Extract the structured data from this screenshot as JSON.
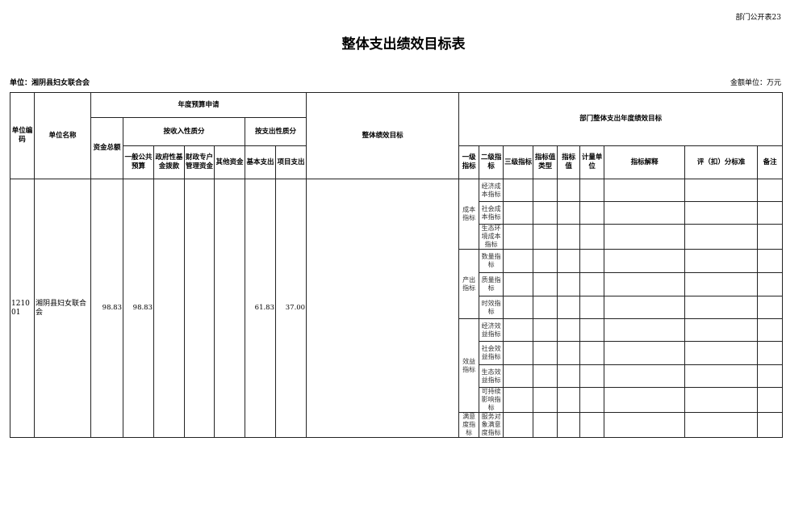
{
  "form_tag": "部门公开表23",
  "title": "整体支出绩效目标表",
  "unit_label": "单位：湘阴县妇女联合会",
  "money_unit": "金额单位：万元",
  "headers": {
    "unit_code": "单位编码",
    "unit_name": "单位名称",
    "annual_budget": "年度预算申请",
    "total_funds": "资金总额",
    "by_income": "按收入性质分",
    "by_expense": "按支出性质分",
    "general_budget": "一般公共预算",
    "gov_fund": "政府性基金拨款",
    "special_account": "财政专户管理资金",
    "other_funds": "其他资金",
    "basic_expense": "基本支出",
    "project_expense": "项目支出",
    "overall_goal": "整体绩效目标",
    "dept_goal": "部门整体支出年度绩效目标",
    "level1": "一级指标",
    "level2": "二级指标",
    "level3": "三级指标",
    "value_type": "指标值类型",
    "value": "指标值",
    "measure_unit": "计量单位",
    "explanation": "指标解释",
    "scoring": "评（扣）分标准",
    "remarks": "备注"
  },
  "record": {
    "unit_code": "121001",
    "unit_name": "湘阴县妇女联合会",
    "total_funds": "98.83",
    "general_budget": "98.83",
    "gov_fund": "",
    "special_account": "",
    "other_funds": "",
    "basic_expense": "61.83",
    "project_expense": "37.00",
    "overall_goal": ""
  },
  "indicators": [
    {
      "level1": "成本指标",
      "level2": [
        "经济成本指标",
        "社会成本指标",
        "生态环境成本指标"
      ]
    },
    {
      "level1": "产出指标",
      "level2": [
        "数量指标",
        "质量指标",
        "时效指标"
      ]
    },
    {
      "level1": "效益指标",
      "level2": [
        "经济效益指标",
        "社会效益指标",
        "生态效益指标",
        "可持续影响指标"
      ]
    },
    {
      "level1": "满意度指标",
      "level2": [
        "服务对象满意度指标"
      ]
    }
  ]
}
